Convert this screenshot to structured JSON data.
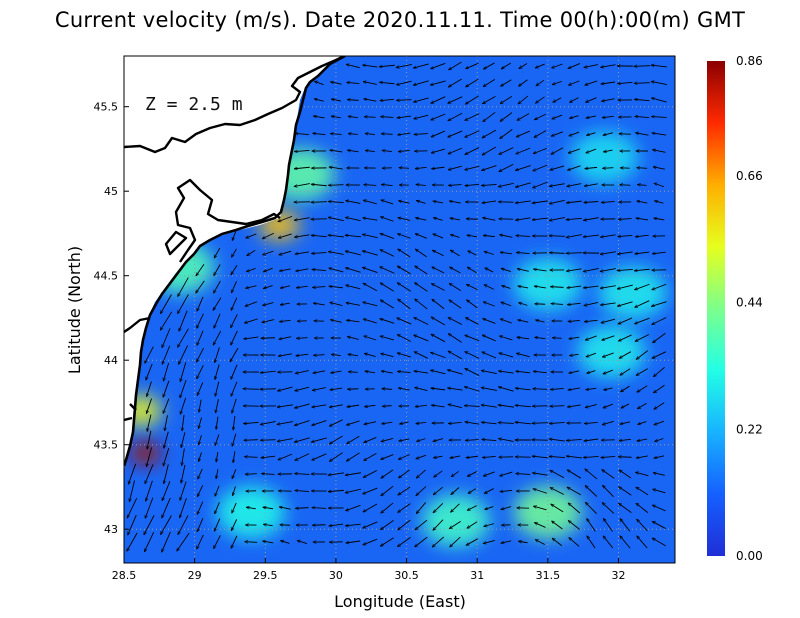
{
  "title": "Current velocity (m/s). Date 2020.11.11. Time 00(h):00(m) GMT",
  "depth_label": "Z = 2.5 m",
  "chart_data": {
    "type": "heatmap",
    "xlabel": "Longitude (East)",
    "ylabel": "Latitude (North)",
    "xlim": [
      28.5,
      32.4
    ],
    "ylim": [
      42.8,
      45.8
    ],
    "x_ticks": [
      "28.5",
      "29",
      "29.5",
      "30",
      "30.5",
      "31",
      "31.5",
      "32"
    ],
    "y_ticks": [
      "43",
      "43.5",
      "44",
      "44.5",
      "45",
      "45.5"
    ],
    "x_tick_values": [
      28.5,
      29,
      29.5,
      30,
      30.5,
      31,
      31.5,
      32
    ],
    "y_tick_values": [
      43,
      43.5,
      44,
      44.5,
      45,
      45.5
    ],
    "grid": true,
    "colorbar": {
      "min": 0.0,
      "max": 0.86,
      "labels": [
        "0.00",
        "0.22",
        "0.44",
        "0.66",
        "0.86"
      ],
      "values": [
        0.0,
        0.22,
        0.44,
        0.66,
        0.86
      ],
      "colormap": [
        "#1f2fd6",
        "#1560ff",
        "#18b2ff",
        "#22ffe6",
        "#7dff8c",
        "#e6ff1e",
        "#ffae00",
        "#ff2a00",
        "#8b0000"
      ]
    },
    "speed_hotspots": [
      {
        "lon": 28.65,
        "lat": 43.45,
        "speed": 0.84
      },
      {
        "lon": 28.62,
        "lat": 43.7,
        "speed": 0.55
      },
      {
        "lon": 29.6,
        "lat": 44.8,
        "speed": 0.62
      },
      {
        "lon": 29.75,
        "lat": 45.1,
        "speed": 0.4
      },
      {
        "lon": 28.9,
        "lat": 44.55,
        "speed": 0.38
      },
      {
        "lon": 31.5,
        "lat": 43.1,
        "speed": 0.42
      },
      {
        "lon": 30.85,
        "lat": 43.05,
        "speed": 0.36
      },
      {
        "lon": 29.4,
        "lat": 43.1,
        "speed": 0.32
      },
      {
        "lon": 31.95,
        "lat": 44.05,
        "speed": 0.3
      },
      {
        "lon": 32.1,
        "lat": 44.4,
        "speed": 0.3
      },
      {
        "lon": 31.9,
        "lat": 45.2,
        "speed": 0.28
      },
      {
        "lon": 31.5,
        "lat": 44.45,
        "speed": 0.3
      }
    ],
    "dominant_flow": "westward to south-westward",
    "land_color": "#ffffff",
    "coastline_color": "#000000"
  }
}
